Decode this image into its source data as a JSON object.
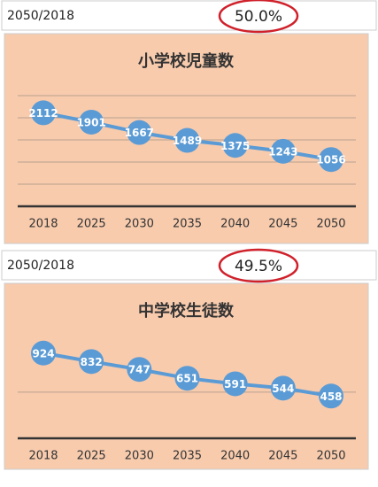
{
  "chart_data": [
    {
      "type": "line",
      "header": [
        "2050/2018",
        "50.0%"
      ],
      "title": "小学校児童数",
      "categories": [
        "2018",
        "2025",
        "2030",
        "2035",
        "2040",
        "2045",
        "2050"
      ],
      "values": [
        2112,
        1901,
        1667,
        1489,
        1375,
        1243,
        1056
      ],
      "color": "#5b9bd5",
      "ylim": [
        0,
        3000
      ],
      "yticks": [
        0,
        500,
        1000,
        1500,
        2000,
        2500
      ],
      "grid": true
    },
    {
      "type": "line",
      "header": [
        "2050/2018",
        "49.5%"
      ],
      "title": "中学校生徒数",
      "categories": [
        "2018",
        "2025",
        "2030",
        "2035",
        "2040",
        "2045",
        "2050"
      ],
      "values": [
        924,
        832,
        747,
        651,
        591,
        544,
        458
      ],
      "color": "#5b9bd5",
      "ylim": [
        0,
        1200
      ],
      "yticks": [
        0,
        500
      ],
      "grid": true
    }
  ]
}
